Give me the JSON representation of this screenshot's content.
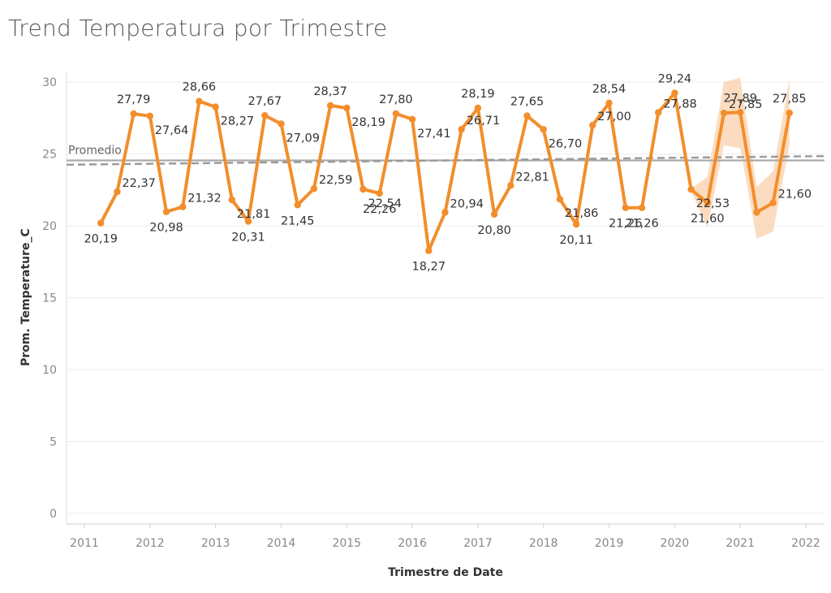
{
  "title": "Trend Temperatura por Trimestre",
  "chart_data": {
    "type": "line",
    "title": "Trend Temperatura por Trimestre",
    "xlabel": "Trimestre de Date",
    "ylabel": "Prom. Temperature_C",
    "ylim": [
      0,
      31
    ],
    "yticks": [
      0,
      5,
      10,
      15,
      20,
      25,
      30
    ],
    "xlim": [
      2010.7,
      2022.3
    ],
    "xticks": [
      "2011",
      "2012",
      "2013",
      "2014",
      "2015",
      "2016",
      "2017",
      "2018",
      "2019",
      "2020",
      "2021",
      "2022"
    ],
    "grid": true,
    "series": [
      {
        "name": "",
        "color": "#f28e2b",
        "x": [
          "2011 Q2",
          "2011 Q3",
          "2011 Q4",
          "2012 Q1",
          "2012 Q2",
          "2012 Q3",
          "2012 Q4",
          "2013 Q1",
          "2013 Q2",
          "2013 Q3",
          "2013 Q4",
          "2014 Q1",
          "2014 Q2",
          "2014 Q3",
          "2014 Q4",
          "2015 Q1",
          "2015 Q2",
          "2015 Q3",
          "2015 Q4",
          "2016 Q1",
          "2016 Q2",
          "2016 Q3",
          "2016 Q4",
          "2017 Q1",
          "2017 Q2",
          "2017 Q3",
          "2017 Q4",
          "2018 Q1",
          "2018 Q2",
          "2018 Q3",
          "2018 Q4",
          "2019 Q1",
          "2019 Q2",
          "2019 Q3",
          "2019 Q4",
          "2020 Q1",
          "2020 Q2",
          "2020 Q3",
          "2020 Q4",
          "2021 Q1",
          "2021 Q2",
          "2021 Q3",
          "2021 Q4"
        ],
        "values": [
          20.19,
          22.37,
          27.79,
          27.64,
          20.98,
          21.32,
          28.66,
          28.27,
          21.81,
          20.31,
          27.67,
          27.09,
          21.45,
          22.59,
          28.37,
          28.19,
          22.54,
          22.26,
          27.8,
          27.41,
          18.27,
          20.94,
          26.71,
          28.19,
          20.8,
          22.81,
          27.65,
          26.7,
          21.86,
          20.11,
          27.0,
          28.54,
          21.26,
          21.26,
          27.88,
          29.24,
          22.53,
          21.6,
          27.85,
          27.89,
          20.94,
          21.6,
          27.85
        ],
        "data_labels": [
          "20,19",
          "22,37",
          "27,79",
          "27,64",
          "20,98",
          "21,32",
          "28,66",
          "28,27",
          "21,81",
          "20,31",
          "27,67",
          "27,09",
          "21,45",
          "22,59",
          "28,37",
          "28,19",
          "22,54",
          "22,26",
          "27,80",
          "27,41",
          "18,27",
          "20,94",
          "26,71",
          "28,19",
          "20,80",
          "22,81",
          "27,65",
          "26,70",
          "21,86",
          "20,11",
          "27,00",
          "28,54",
          "21,26",
          "21,26",
          "27,88",
          "29,24",
          "22,53",
          "21,60",
          "27,85",
          "27,89",
          "",
          "21,60",
          "27,85"
        ]
      }
    ],
    "reference_line": {
      "label": "Promedio",
      "value": 24.55
    },
    "trend_line": {
      "start_value": 24.25,
      "end_value": 24.85,
      "style": "dashed"
    },
    "forecast_band": {
      "x": [
        "2020 Q2",
        "2020 Q3",
        "2020 Q4",
        "2021 Q1",
        "2021 Q2",
        "2021 Q3",
        "2021 Q4"
      ],
      "lower": [
        22.4,
        19.9,
        25.6,
        25.4,
        19.1,
        19.6,
        25.6
      ],
      "upper": [
        22.6,
        23.4,
        30.0,
        30.3,
        22.7,
        23.8,
        30.2
      ],
      "color": "#fbd3b0"
    }
  }
}
